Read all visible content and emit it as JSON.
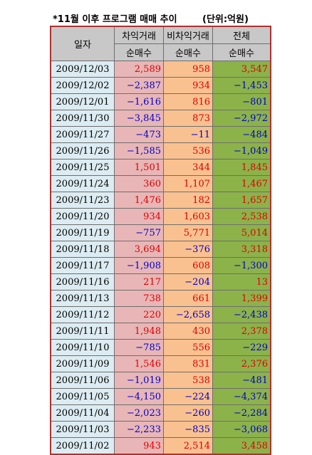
{
  "title": "*11월 이후 프로그램 매매 추이",
  "unit": "(단위:억원)",
  "headers": {
    "date": "일자",
    "arb": "차익거래",
    "nonarb": "비차익거래",
    "total": "전체",
    "net": "순매수"
  },
  "rows": [
    {
      "date": "2009/12/03",
      "arb": "2,589",
      "nonarb": "958",
      "total": "3,547"
    },
    {
      "date": "2009/12/02",
      "arb": "−2,387",
      "nonarb": "934",
      "total": "−1,453"
    },
    {
      "date": "2009/12/01",
      "arb": "−1,616",
      "nonarb": "816",
      "total": "−801"
    },
    {
      "date": "2009/11/30",
      "arb": "−3,845",
      "nonarb": "873",
      "total": "−2,972"
    },
    {
      "date": "2009/11/27",
      "arb": "−473",
      "nonarb": "−11",
      "total": "−484"
    },
    {
      "date": "2009/11/26",
      "arb": "−1,585",
      "nonarb": "536",
      "total": "−1,049"
    },
    {
      "date": "2009/11/25",
      "arb": "1,501",
      "nonarb": "344",
      "total": "1,845"
    },
    {
      "date": "2009/11/24",
      "arb": "360",
      "nonarb": "1,107",
      "total": "1,467"
    },
    {
      "date": "2009/11/23",
      "arb": "1,476",
      "nonarb": "182",
      "total": "1,657"
    },
    {
      "date": "2009/11/20",
      "arb": "934",
      "nonarb": "1,603",
      "total": "2,538"
    },
    {
      "date": "2009/11/19",
      "arb": "−757",
      "nonarb": "5,771",
      "total": "5,014"
    },
    {
      "date": "2009/11/18",
      "arb": "3,694",
      "nonarb": "−376",
      "total": "3,318"
    },
    {
      "date": "2009/11/17",
      "arb": "−1,908",
      "nonarb": "608",
      "total": "−1,300"
    },
    {
      "date": "2009/11/16",
      "arb": "217",
      "nonarb": "−204",
      "total": "13"
    },
    {
      "date": "2009/11/13",
      "arb": "738",
      "nonarb": "661",
      "total": "1,399"
    },
    {
      "date": "2009/11/12",
      "arb": "220",
      "nonarb": "−2,658",
      "total": "−2,438"
    },
    {
      "date": "2009/11/11",
      "arb": "1,948",
      "nonarb": "430",
      "total": "2,378"
    },
    {
      "date": "2009/11/10",
      "arb": "−785",
      "nonarb": "556",
      "total": "−229"
    },
    {
      "date": "2009/11/09",
      "arb": "1,546",
      "nonarb": "831",
      "total": "2,376"
    },
    {
      "date": "2009/11/06",
      "arb": "−1,019",
      "nonarb": "538",
      "total": "−481"
    },
    {
      "date": "2009/11/05",
      "arb": "−4,150",
      "nonarb": "−224",
      "total": "−4,374"
    },
    {
      "date": "2009/11/04",
      "arb": "−2,023",
      "nonarb": "−260",
      "total": "−2,284"
    },
    {
      "date": "2009/11/03",
      "arb": "−2,233",
      "nonarb": "−835",
      "total": "−3,068"
    },
    {
      "date": "2009/11/02",
      "arb": "943",
      "nonarb": "2,514",
      "total": "3,458"
    }
  ],
  "colors": {
    "positive": "#e00000",
    "negative": "#0000cc",
    "arb_fill": "#e8b6b6",
    "nonarb_fill": "#f9c190",
    "total_fill": "#8cb24a",
    "date_fill": "#dcecf2",
    "header_fill": "#c8c8c8",
    "border": "#b03030"
  }
}
